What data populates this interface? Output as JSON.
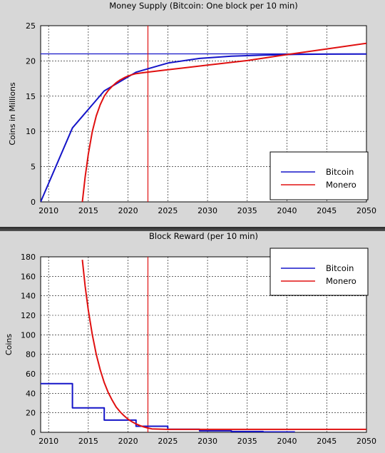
{
  "chart_data": [
    {
      "type": "line",
      "title": "Money Supply (Bitcoin: One block per 10 min)",
      "ylabel": "Coins in Millions",
      "xlabel": "",
      "xlim": [
        2009,
        2050
      ],
      "ylim": [
        0,
        25
      ],
      "xticks": [
        2010,
        2015,
        2020,
        2025,
        2030,
        2035,
        2040,
        2045,
        2050
      ],
      "yticks": [
        0,
        5,
        10,
        15,
        20,
        25
      ],
      "grid": true,
      "legend": "right",
      "reference_lines": {
        "vertical_x": 2022.5,
        "horizontal_y": 21
      },
      "series": [
        {
          "name": "Bitcoin",
          "color": "#1515c8",
          "x": [
            2009,
            2013,
            2017,
            2021,
            2025,
            2029,
            2033,
            2037,
            2041,
            2045,
            2050
          ],
          "y": [
            0,
            10.5,
            15.75,
            18.4,
            19.7,
            20.35,
            20.67,
            20.83,
            20.92,
            20.96,
            20.98
          ]
        },
        {
          "name": "Monero",
          "color": "#e01010",
          "x": [
            2014.25,
            2014.6,
            2015,
            2015.5,
            2016,
            2016.5,
            2017,
            2017.5,
            2018,
            2018.5,
            2019,
            2019.5,
            2020,
            2020.5,
            2021,
            2022,
            2025,
            2030,
            2035,
            2040,
            2045,
            2050
          ],
          "y": [
            0,
            3.5,
            6.8,
            10,
            12.2,
            13.8,
            15.0,
            15.8,
            16.4,
            16.9,
            17.3,
            17.6,
            17.85,
            18.05,
            18.2,
            18.35,
            18.75,
            19.4,
            20.05,
            20.9,
            21.7,
            22.5
          ]
        }
      ]
    },
    {
      "type": "line",
      "title": "Block Reward (per 10 min)",
      "ylabel": "Coins",
      "xlabel": "",
      "xlim": [
        2009,
        2050
      ],
      "ylim": [
        0,
        180
      ],
      "xticks": [
        2010,
        2015,
        2020,
        2025,
        2030,
        2035,
        2040,
        2045,
        2050
      ],
      "yticks": [
        0,
        20,
        40,
        60,
        80,
        100,
        120,
        140,
        160,
        180
      ],
      "grid": true,
      "legend": "top-right",
      "reference_lines": {
        "vertical_x": 2022.5
      },
      "series": [
        {
          "name": "Bitcoin",
          "color": "#1515c8",
          "step": true,
          "x": [
            2009,
            2013,
            2013,
            2017,
            2017,
            2021,
            2021,
            2025,
            2025,
            2029,
            2029,
            2033,
            2033,
            2037,
            2037,
            2041
          ],
          "y": [
            50,
            50,
            25,
            25,
            12.5,
            12.5,
            6.25,
            6.25,
            3.125,
            3.125,
            1.5625,
            1.5625,
            0.78,
            0.78,
            0.39,
            0.39
          ]
        },
        {
          "name": "Monero",
          "color": "#e01010",
          "x": [
            2014.25,
            2014.6,
            2015,
            2015.5,
            2016,
            2016.5,
            2017,
            2017.5,
            2018,
            2018.5,
            2019,
            2019.5,
            2020,
            2020.5,
            2021,
            2021.5,
            2022,
            2022.5,
            2023,
            2025,
            2030,
            2040,
            2050
          ],
          "y": [
            177,
            150,
            125,
            100,
            80,
            64,
            51,
            41,
            33,
            26,
            21,
            17,
            13.5,
            10.8,
            8.6,
            6.9,
            5.5,
            4.4,
            3.5,
            3,
            3,
            3,
            3
          ]
        }
      ]
    }
  ]
}
